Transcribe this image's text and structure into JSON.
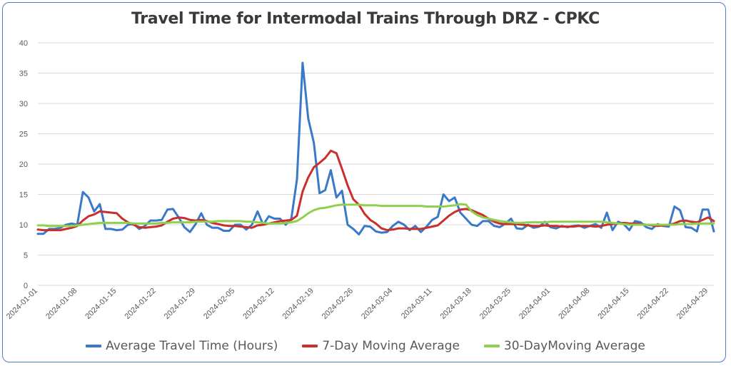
{
  "chart_data": {
    "type": "line",
    "title": "Travel Time for Intermodal Trains Through DRZ - CPKC",
    "xlabel": "",
    "ylabel": "",
    "ylim": [
      0,
      40
    ],
    "yticks": [
      0,
      5,
      10,
      15,
      20,
      25,
      30,
      35,
      40
    ],
    "x_start": "2024-01-01",
    "xticks": [
      "2024-01-01",
      "2024-01-08",
      "2024-01-15",
      "2024-01-22",
      "2024-01-29",
      "2024-02-05",
      "2024-02-12",
      "2024-02-19",
      "2024-02-26",
      "2024-03-04",
      "2024-03-11",
      "2024-03-18",
      "2024-03-25",
      "2024-04-01",
      "2024-04-08",
      "2024-04-15",
      "2024-04-22",
      "2024-04-29"
    ],
    "grid": true,
    "legend_position": "bottom",
    "series": [
      {
        "name": "Average Travel Time (Hours)",
        "color": "#3a78c9",
        "values": [
          8.5,
          8.5,
          9.3,
          9.3,
          9.5,
          10,
          10.2,
          10,
          15.4,
          14.5,
          12.2,
          13.4,
          9.3,
          9.3,
          9.1,
          9.2,
          10,
          10.1,
          9.3,
          9.8,
          10.7,
          10.7,
          10.8,
          12.5,
          12.6,
          11.2,
          9.6,
          8.8,
          10.1,
          11.9,
          10,
          9.5,
          9.5,
          9,
          9,
          10,
          10,
          9.2,
          10,
          12.2,
          10,
          11.4,
          11,
          11,
          10,
          11,
          17.5,
          36.7,
          27.5,
          23.5,
          15.2,
          15.7,
          19,
          14.5,
          15.6,
          10,
          9.3,
          8.4,
          9.8,
          9.7,
          8.9,
          8.7,
          8.8,
          9.8,
          10.5,
          10,
          9.1,
          9.8,
          8.8,
          9.7,
          10.8,
          11.3,
          15,
          13.9,
          14.5,
          12,
          11,
          10,
          9.8,
          10.6,
          10.6,
          9.8,
          9.6,
          10.2,
          11,
          9.4,
          9.3,
          10,
          9.5,
          9.7,
          10.5,
          9.6,
          9.4,
          9.8,
          9.6,
          9.8,
          9.9,
          9.5,
          9.8,
          10.1,
          9.5,
          12,
          9.1,
          10.5,
          10.1,
          9.1,
          10.6,
          10.4,
          9.6,
          9.3,
          10.1,
          9.8,
          9.7,
          13,
          12.4,
          9.6,
          9.5,
          8.9,
          12.5,
          12.5,
          8.9
        ]
      },
      {
        "name": "7-Day Moving Average",
        "color": "#c9302c",
        "values": [
          9.2,
          9.1,
          9.1,
          9.1,
          9.1,
          9.3,
          9.5,
          9.8,
          10.7,
          11.4,
          11.7,
          12.2,
          12.1,
          12,
          11.9,
          11,
          10.4,
          10,
          9.6,
          9.5,
          9.6,
          9.7,
          9.9,
          10.5,
          11,
          11.2,
          11.1,
          10.8,
          10.7,
          10.8,
          10.6,
          10.3,
          10.1,
          9.9,
          9.8,
          9.8,
          9.7,
          9.6,
          9.5,
          9.9,
          10,
          10.2,
          10.4,
          10.6,
          10.7,
          10.8,
          11.5,
          15.5,
          17.8,
          19.5,
          20.2,
          21,
          22.2,
          21.8,
          19.2,
          16.5,
          14.2,
          13.3,
          11.8,
          10.8,
          10.2,
          9.4,
          9.1,
          9.2,
          9.4,
          9.4,
          9.3,
          9.3,
          9.3,
          9.5,
          9.7,
          9.9,
          10.7,
          11.5,
          12.1,
          12.5,
          12.6,
          12.4,
          12,
          11.6,
          11,
          10.5,
          10.2,
          10.1,
          10.1,
          10.1,
          10,
          9.9,
          9.8,
          9.8,
          9.9,
          9.8,
          9.8,
          9.7,
          9.7,
          9.7,
          9.8,
          9.8,
          9.8,
          9.7,
          9.8,
          10,
          10.1,
          10.2,
          10.3,
          10.2,
          10.2,
          10.1,
          10,
          9.9,
          9.8,
          9.9,
          10,
          10.2,
          10.6,
          10.7,
          10.5,
          10.4,
          10.8,
          11.2,
          10.6
        ]
      },
      {
        "name": "30-DayMoving Average",
        "color": "#8fd14f",
        "values": [
          9.9,
          9.9,
          9.8,
          9.8,
          9.8,
          9.8,
          9.8,
          9.9,
          10,
          10.1,
          10.2,
          10.3,
          10.3,
          10.3,
          10.3,
          10.3,
          10.3,
          10.2,
          10.2,
          10.2,
          10.2,
          10.2,
          10.3,
          10.3,
          10.4,
          10.4,
          10.4,
          10.4,
          10.5,
          10.5,
          10.5,
          10.5,
          10.6,
          10.6,
          10.6,
          10.6,
          10.6,
          10.5,
          10.5,
          10.4,
          10.3,
          10.2,
          10.2,
          10.2,
          10.3,
          10.4,
          10.6,
          11.2,
          11.9,
          12.4,
          12.7,
          12.8,
          13,
          13.2,
          13.3,
          13.3,
          13.3,
          13.3,
          13.2,
          13.2,
          13.2,
          13.1,
          13.1,
          13.1,
          13.1,
          13.1,
          13.1,
          13.1,
          13.1,
          13,
          13,
          13,
          13,
          13.1,
          13.2,
          13.4,
          13.3,
          12.2,
          11.6,
          11.2,
          11,
          10.8,
          10.6,
          10.5,
          10.4,
          10.3,
          10.3,
          10.4,
          10.4,
          10.4,
          10.4,
          10.5,
          10.5,
          10.5,
          10.5,
          10.5,
          10.5,
          10.5,
          10.5,
          10.5,
          10.5,
          10.4,
          10.3,
          10.2,
          10.1,
          10,
          10,
          10,
          10,
          10,
          10,
          10,
          10,
          10,
          10.1,
          10.1,
          10.1,
          10.2,
          10.2,
          10.2,
          10.2
        ]
      }
    ]
  }
}
